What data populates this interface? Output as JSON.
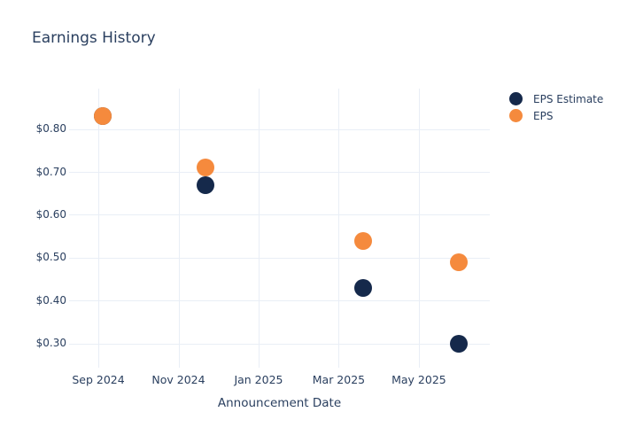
{
  "chart_data": {
    "type": "scatter",
    "title": "Earnings History",
    "xlabel": "Announcement Date",
    "ylabel": "",
    "x_unit": "months since Sep 2024",
    "xlim": [
      -0.73,
      9.77
    ],
    "ylim": [
      0.244,
      0.894
    ],
    "grid": true,
    "legend_position": "outside-top-right",
    "x_ticks": [
      {
        "pos": 0,
        "label": "Sep 2024"
      },
      {
        "pos": 2,
        "label": "Nov 2024"
      },
      {
        "pos": 4,
        "label": "Jan 2025"
      },
      {
        "pos": 6,
        "label": "Mar 2025"
      },
      {
        "pos": 8,
        "label": "May 2025"
      }
    ],
    "y_ticks": [
      {
        "value": 0.3,
        "label": "$0.30"
      },
      {
        "value": 0.4,
        "label": "$0.40"
      },
      {
        "value": 0.5,
        "label": "$0.50"
      },
      {
        "value": 0.6,
        "label": "$0.60"
      },
      {
        "value": 0.7,
        "label": "$0.70"
      },
      {
        "value": 0.8,
        "label": "$0.80"
      }
    ],
    "series": [
      {
        "name": "EPS Estimate",
        "color": "#15294b",
        "marker": "circle",
        "points": [
          {
            "x": 0.11,
            "y": 0.83,
            "approx_date": "Sep 2024"
          },
          {
            "x": 2.67,
            "y": 0.67,
            "approx_date": "Nov 2024"
          },
          {
            "x": 6.61,
            "y": 0.43,
            "approx_date": "Mar 2025"
          },
          {
            "x": 8.99,
            "y": 0.3,
            "approx_date": "Jun 2025"
          }
        ]
      },
      {
        "name": "EPS",
        "color": "#f58a3d",
        "marker": "circle",
        "points": [
          {
            "x": 0.11,
            "y": 0.83,
            "approx_date": "Sep 2024"
          },
          {
            "x": 2.67,
            "y": 0.71,
            "approx_date": "Nov 2024"
          },
          {
            "x": 6.61,
            "y": 0.54,
            "approx_date": "Mar 2025"
          },
          {
            "x": 8.99,
            "y": 0.49,
            "approx_date": "Jun 2025"
          }
        ]
      }
    ]
  },
  "colors": {
    "text": "#2a3f5f",
    "gridline": "#e9eef6",
    "background": "#ffffff",
    "eps_estimate": "#15294b",
    "eps": "#f58a3d"
  }
}
